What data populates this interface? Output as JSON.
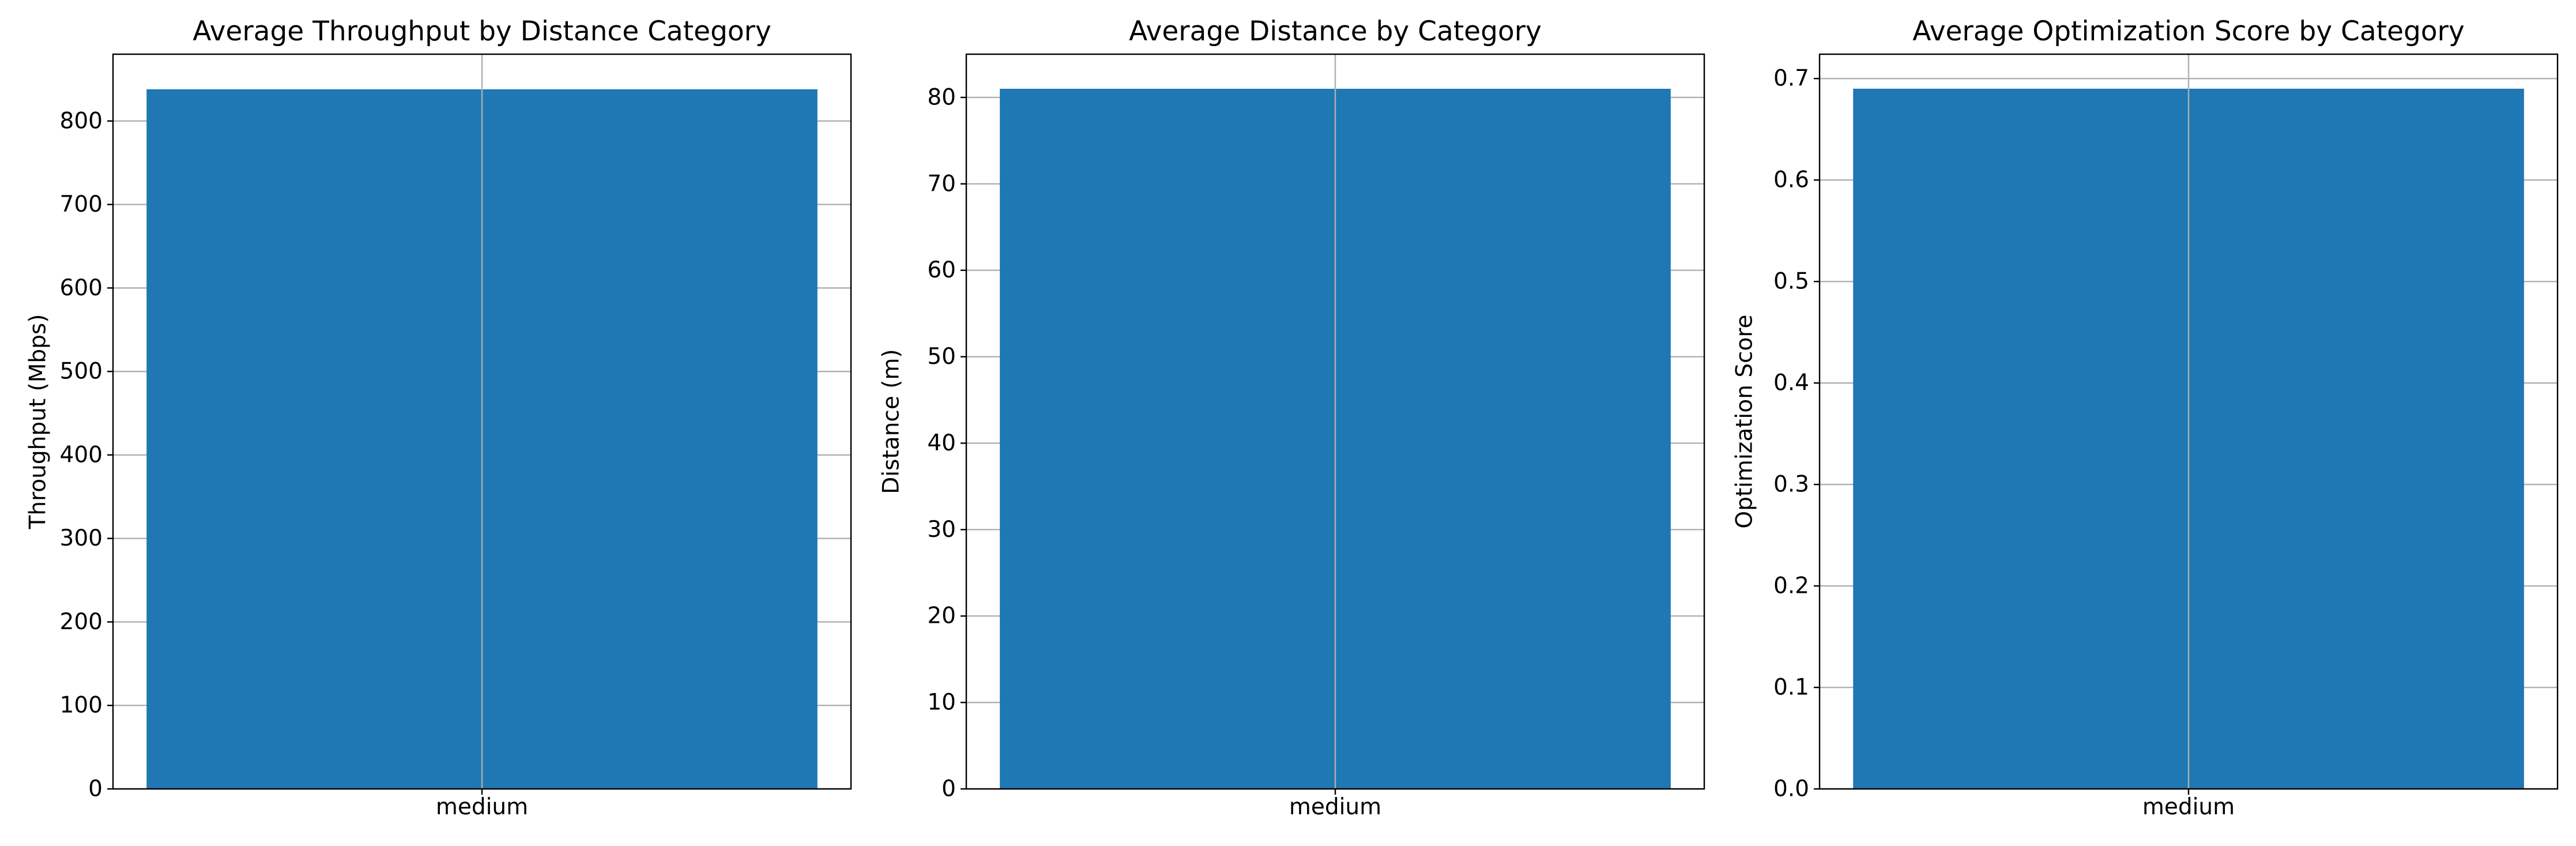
{
  "colors": {
    "bar": "#1f77b4",
    "grid": "#b0b0b0",
    "axis": "#000000",
    "background": "#ffffff"
  },
  "chart_data": [
    {
      "type": "bar",
      "title": "Average Throughput by Distance Category",
      "xlabel": "",
      "ylabel": "Throughput (Mbps)",
      "categories": [
        "medium"
      ],
      "values": [
        838
      ],
      "ylim": [
        0,
        880
      ],
      "yticks": [
        0,
        100,
        200,
        300,
        400,
        500,
        600,
        700,
        800
      ],
      "ytick_labels": [
        "0",
        "100",
        "200",
        "300",
        "400",
        "500",
        "600",
        "700",
        "800"
      ],
      "grid": true,
      "legend": "none"
    },
    {
      "type": "bar",
      "title": "Average Distance by Category",
      "xlabel": "",
      "ylabel": "Distance (m)",
      "categories": [
        "medium"
      ],
      "values": [
        81
      ],
      "ylim": [
        0,
        85
      ],
      "yticks": [
        0,
        10,
        20,
        30,
        40,
        50,
        60,
        70,
        80
      ],
      "ytick_labels": [
        "0",
        "10",
        "20",
        "30",
        "40",
        "50",
        "60",
        "70",
        "80"
      ],
      "grid": true,
      "legend": "none"
    },
    {
      "type": "bar",
      "title": "Average Optimization Score by Category",
      "xlabel": "",
      "ylabel": "Optimization Score",
      "categories": [
        "medium"
      ],
      "values": [
        0.69
      ],
      "ylim": [
        0,
        0.724
      ],
      "yticks": [
        0,
        0.1,
        0.2,
        0.3,
        0.4,
        0.5,
        0.6,
        0.7
      ],
      "ytick_labels": [
        "0.0",
        "0.1",
        "0.2",
        "0.3",
        "0.4",
        "0.5",
        "0.6",
        "0.7"
      ],
      "grid": true,
      "legend": "none"
    }
  ]
}
